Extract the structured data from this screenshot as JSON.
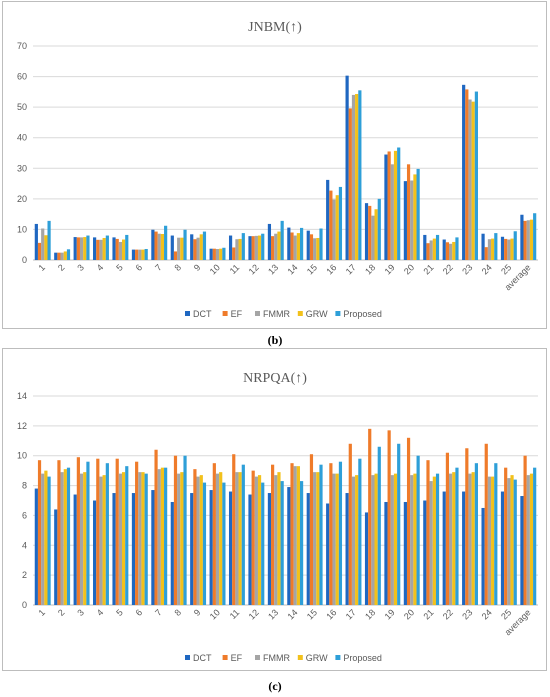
{
  "captions": {
    "b": "(b)",
    "c": "(c)"
  },
  "colors": {
    "DCT": "#1f67c1",
    "EF": "#ef7b2a",
    "FMMR": "#a5a5a5",
    "GRW": "#f2c11b",
    "Proposed": "#2e9fd8"
  },
  "chart_data": [
    {
      "type": "bar",
      "title": "JNBM(↑)",
      "ylim": [
        0,
        70
      ],
      "yticks": [
        0,
        10,
        20,
        30,
        40,
        50,
        60,
        70
      ],
      "grid": true,
      "legend": "bottom",
      "categories": [
        "1",
        "2",
        "3",
        "4",
        "5",
        "6",
        "7",
        "8",
        "9",
        "10",
        "11",
        "12",
        "13",
        "14",
        "15",
        "16",
        "17",
        "18",
        "19",
        "20",
        "21",
        "22",
        "23",
        "24",
        "25",
        "average"
      ],
      "series": [
        {
          "name": "DCT",
          "values": [
            11.8,
            2.4,
            7.5,
            7.4,
            7.4,
            3.4,
            9.9,
            8.0,
            8.4,
            3.7,
            8.0,
            7.8,
            11.8,
            10.6,
            9.6,
            26.2,
            60.3,
            18.6,
            34.5,
            25.8,
            8.2,
            6.7,
            57.3,
            8.6,
            7.6,
            14.8
          ]
        },
        {
          "name": "EF",
          "values": [
            5.6,
            2.4,
            7.4,
            6.6,
            6.9,
            3.4,
            9.3,
            2.8,
            6.8,
            3.7,
            4.1,
            7.8,
            7.8,
            9.0,
            8.4,
            22.7,
            49.6,
            17.7,
            35.5,
            31.3,
            5.5,
            5.8,
            55.8,
            4.2,
            6.9,
            12.8
          ]
        },
        {
          "name": "FMMR",
          "values": [
            10.3,
            2.4,
            7.4,
            6.6,
            5.9,
            3.4,
            8.6,
            7.3,
            7.3,
            3.6,
            6.8,
            7.9,
            8.6,
            8.0,
            7.1,
            19.8,
            54.0,
            14.5,
            31.3,
            26.0,
            6.4,
            5.3,
            52.5,
            6.8,
            6.7,
            13.0
          ]
        },
        {
          "name": "GRW",
          "values": [
            8.1,
            2.8,
            7.5,
            7.2,
            6.7,
            3.4,
            8.5,
            7.3,
            8.4,
            3.7,
            6.9,
            8.0,
            9.3,
            8.8,
            7.2,
            21.2,
            54.3,
            16.6,
            35.7,
            28.0,
            7.0,
            5.9,
            51.8,
            7.0,
            7.0,
            13.2
          ]
        },
        {
          "name": "Proposed",
          "values": [
            12.8,
            3.5,
            8.0,
            8.0,
            8.2,
            3.6,
            11.2,
            9.9,
            9.3,
            4.0,
            8.8,
            8.6,
            12.8,
            10.5,
            10.3,
            23.9,
            55.5,
            20.0,
            36.8,
            29.8,
            8.2,
            7.4,
            55.1,
            8.8,
            9.4,
            15.3
          ]
        }
      ]
    },
    {
      "type": "bar",
      "title": "NRPQA(↑)",
      "ylim": [
        0,
        14
      ],
      "yticks": [
        0,
        2,
        4,
        6,
        8,
        10,
        12,
        14
      ],
      "grid": true,
      "legend": "bottom",
      "categories": [
        "1",
        "2",
        "3",
        "4",
        "5",
        "6",
        "7",
        "8",
        "9",
        "10",
        "11",
        "12",
        "13",
        "14",
        "15",
        "16",
        "17",
        "18",
        "19",
        "20",
        "21",
        "22",
        "23",
        "24",
        "25",
        "average"
      ],
      "series": [
        {
          "name": "DCT",
          "values": [
            7.8,
            6.4,
            7.4,
            7.0,
            7.5,
            7.5,
            7.7,
            6.9,
            7.5,
            7.7,
            7.6,
            7.4,
            7.5,
            7.9,
            7.5,
            6.8,
            7.5,
            6.2,
            6.9,
            6.9,
            7.0,
            7.6,
            7.6,
            6.5,
            7.6,
            7.3
          ]
        },
        {
          "name": "EF",
          "values": [
            9.7,
            9.7,
            9.9,
            9.8,
            9.8,
            9.6,
            10.4,
            10.0,
            9.1,
            9.5,
            10.1,
            9.0,
            9.4,
            9.5,
            10.1,
            9.5,
            10.8,
            11.8,
            11.7,
            11.2,
            9.7,
            10.2,
            10.5,
            10.8,
            9.2,
            10.0
          ]
        },
        {
          "name": "FMMR",
          "values": [
            8.8,
            8.9,
            8.8,
            8.6,
            8.8,
            8.9,
            9.1,
            8.8,
            8.6,
            8.8,
            8.9,
            8.6,
            8.7,
            9.3,
            8.9,
            8.8,
            8.6,
            8.7,
            8.7,
            8.7,
            8.3,
            8.8,
            8.8,
            8.6,
            8.5,
            8.7
          ]
        },
        {
          "name": "GRW",
          "values": [
            9.0,
            9.1,
            8.9,
            8.7,
            8.9,
            8.9,
            9.2,
            8.9,
            8.7,
            8.9,
            8.9,
            8.7,
            8.9,
            9.3,
            8.9,
            8.8,
            8.7,
            8.8,
            8.8,
            8.8,
            8.6,
            8.9,
            8.9,
            8.6,
            8.7,
            8.8
          ]
        },
        {
          "name": "Proposed",
          "values": [
            8.6,
            9.2,
            9.6,
            9.5,
            9.3,
            8.8,
            9.2,
            10.0,
            8.2,
            8.2,
            9.4,
            8.2,
            8.3,
            8.3,
            9.4,
            9.6,
            9.8,
            10.6,
            10.8,
            10.0,
            8.8,
            9.2,
            9.5,
            9.5,
            8.4,
            9.2
          ]
        }
      ]
    }
  ]
}
